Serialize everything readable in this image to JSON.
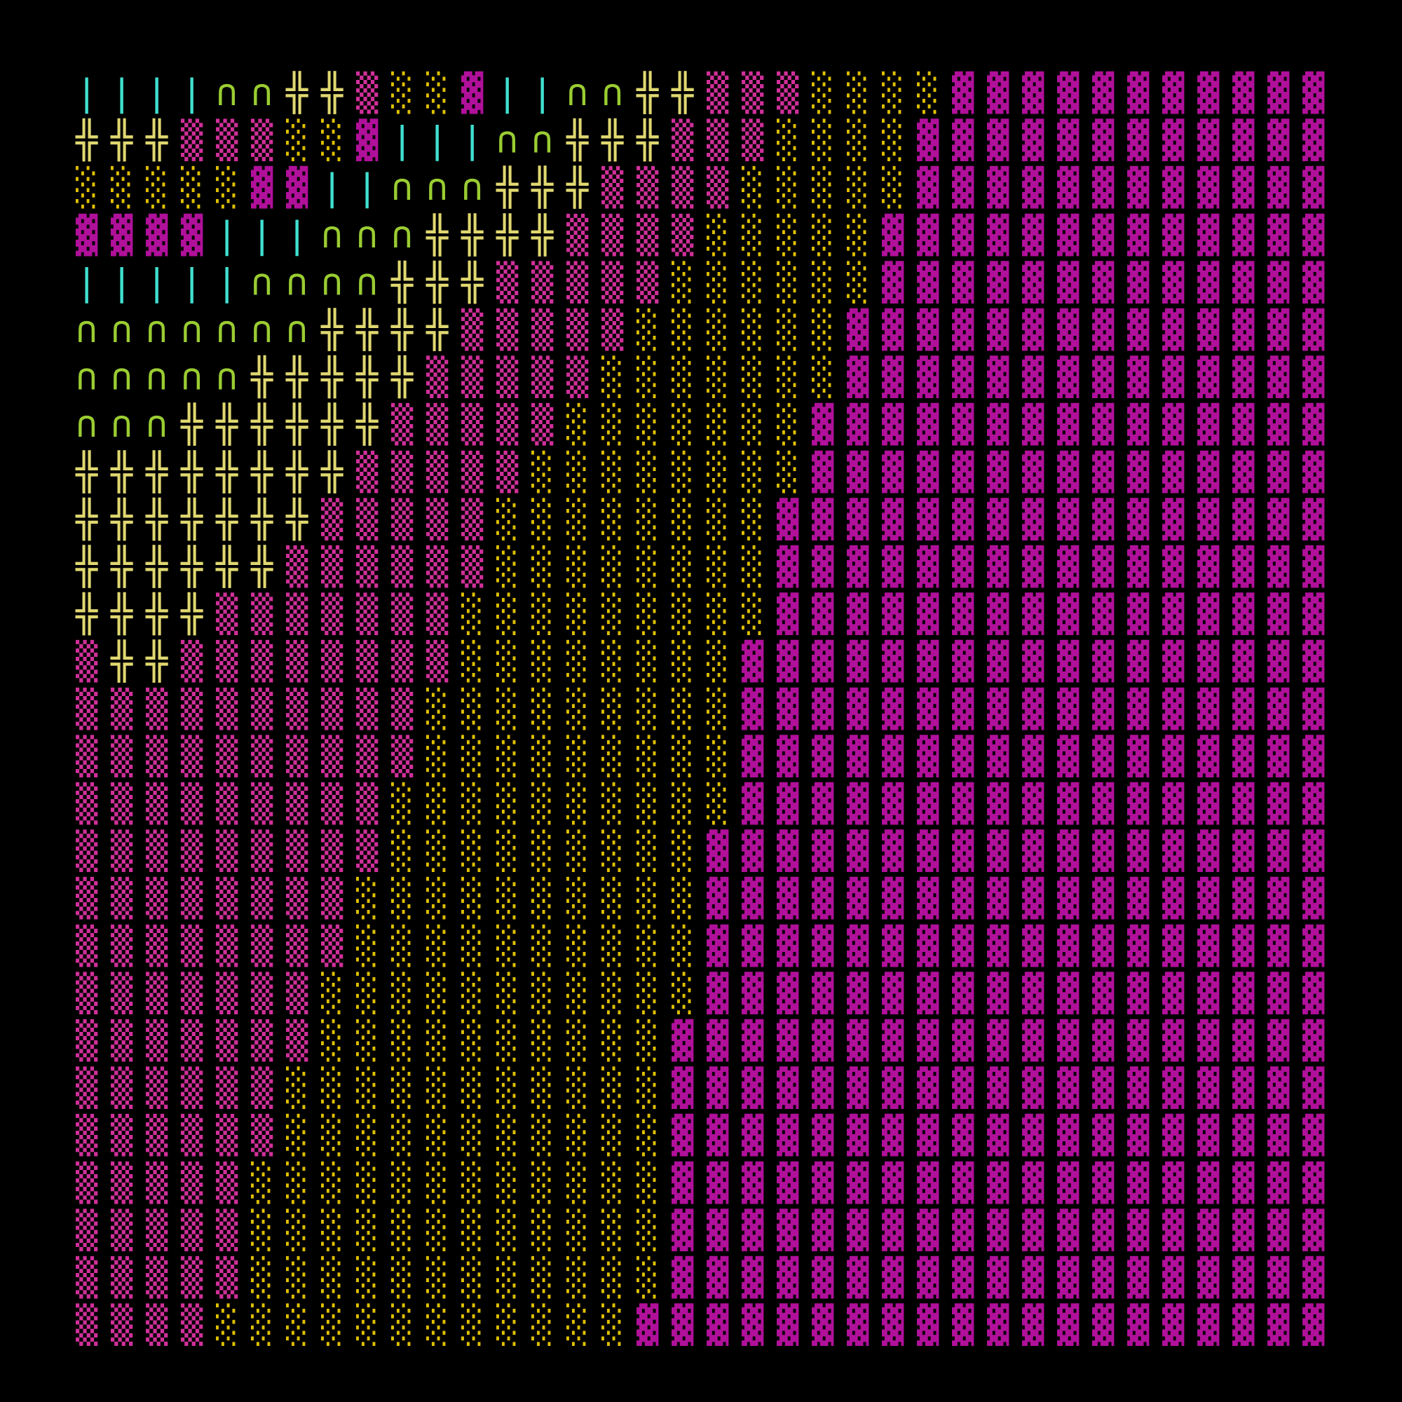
{
  "rows": [
    "||||∩∩╬╬▒░░▓||∩∩╬╬▒▒▒░░░░▓▓▓▓▓▓▓▓▓▓▓",
    "╬╬╬▒▒▒░░▓|||∩∩╬╬╬▒▒▒░░░░▓▓▓▓▓▓▓▓▓▓▓▓",
    "░░░░░▓▓||∩∩∩╬╬╬▒▒▒▒░░░░░▓▓▓▓▓▓▓▓▓▓▓▓",
    "▓▓▓▓|||∩∩∩╬╬╬╬▒▒▒▒░░░░░▓▓▓▓▓▓▓▓▓▓▓▓▓",
    "|||||∩∩∩∩╬╬╬▒▒▒▒▒░░░░░░▓▓▓▓▓▓▓▓▓▓▓▓▓",
    "∩∩∩∩∩∩∩╬╬╬╬▒▒▒▒▒░░░░░░▓▓▓▓▓▓▓▓▓▓▓▓▓▓",
    "∩∩∩∩∩╬╬╬╬╬▒▒▒▒▒░░░░░░░▓▓▓▓▓▓▓▓▓▓▓▓▓▓",
    "∩∩∩╬╬╬╬╬╬▒▒▒▒▒░░░░░░░▓▓▓▓▓▓▓▓▓▓▓▓▓▓▓",
    "╬╬╬╬╬╬╬╬▒▒▒▒▒░░░░░░░░▓▓▓▓▓▓▓▓▓▓▓▓▓▓▓",
    "╬╬╬╬╬╬╬▒▒▒▒▒░░░░░░░░▓▓▓▓▓▓▓▓▓▓▓▓▓▓▓▓",
    "╬╬╬╬╬╬▒▒▒▒▒▒░░░░░░░░▓▓▓▓▓▓▓▓▓▓▓▓▓▓▓▓",
    "╬╬╬╬▒▒▒▒▒▒▒░░░░░░░░░▓▓▓▓▓▓▓▓▓▓▓▓▓▓▓▓",
    "▒╬╬▒▒▒▒▒▒▒▒░░░░░░░░▓▓▓▓▓▓▓▓▓▓▓▓▓▓▓▓▓",
    "▒▒▒▒▒▒▒▒▒▒░░░░░░░░░▓▓▓▓▓▓▓▓▓▓▓▓▓▓▓▓▓",
    "▒▒▒▒▒▒▒▒▒▒░░░░░░░░░▓▓▓▓▓▓▓▓▓▓▓▓▓▓▓▓▓",
    "▒▒▒▒▒▒▒▒▒░░░░░░░░░░▓▓▓▓▓▓▓▓▓▓▓▓▓▓▓▓▓",
    "▒▒▒▒▒▒▒▒▒░░░░░░░░░▓▓▓▓▓▓▓▓▓▓▓▓▓▓▓▓▓▓",
    "▒▒▒▒▒▒▒▒░░░░░░░░░░▓▓▓▓▓▓▓▓▓▓▓▓▓▓▓▓▓▓",
    "▒▒▒▒▒▒▒▒░░░░░░░░░░▓▓▓▓▓▓▓▓▓▓▓▓▓▓▓▓▓▓",
    "▒▒▒▒▒▒▒░░░░░░░░░░░▓▓▓▓▓▓▓▓▓▓▓▓▓▓▓▓▓▓",
    "▒▒▒▒▒▒▒░░░░░░░░░░▓▓▓▓▓▓▓▓▓▓▓▓▓▓▓▓▓▓▓",
    "▒▒▒▒▒▒░░░░░░░░░░░▓▓▓▓▓▓▓▓▓▓▓▓▓▓▓▓▓▓▓",
    "▒▒▒▒▒▒░░░░░░░░░░░▓▓▓▓▓▓▓▓▓▓▓▓▓▓▓▓▓▓▓",
    "▒▒▒▒▒░░░░░░░░░░░░▓▓▓▓▓▓▓▓▓▓▓▓▓▓▓▓▓▓▓",
    "▒▒▒▒▒░░░░░░░░░░░░▓▓▓▓▓▓▓▓▓▓▓▓▓▓▓▓▓▓▓",
    "▒▒▒▒▒░░░░░░░░░░░░▓▓▓▓▓▓▓▓▓▓▓▓▓▓▓▓▓▓▓",
    "▒▒▒▒░░░░░░░░░░░░▓▓▓▓▓▓▓▓▓▓▓▓▓▓▓▓▓▓▓▓"
  ],
  "palette": {
    "|": "#40e0d0",
    "∩": "#9acd32",
    "╬": "#e0d870",
    "▒": "#d0309a",
    "░": "#e0c000",
    "▓": "#b0109a"
  }
}
